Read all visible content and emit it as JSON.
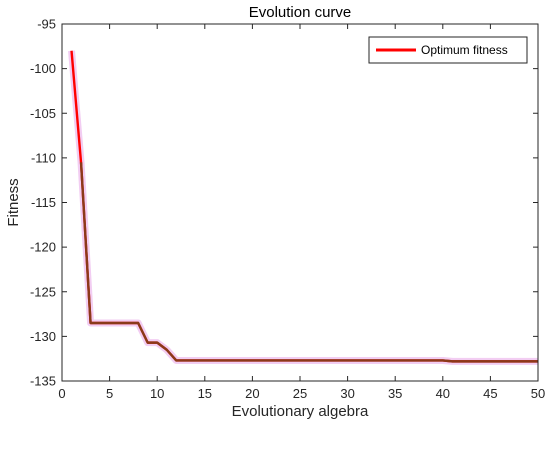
{
  "chart_data": {
    "type": "line",
    "title": "Evolution curve",
    "xlabel": "Evolutionary algebra",
    "ylabel": "Fitness",
    "xlim": [
      0,
      50
    ],
    "ylim": [
      -135,
      -95
    ],
    "xticks": [
      0,
      5,
      10,
      15,
      20,
      25,
      30,
      35,
      40,
      45,
      50
    ],
    "yticks": [
      -95,
      -100,
      -105,
      -110,
      -115,
      -120,
      -125,
      -130,
      -135
    ],
    "grid": false,
    "legend_position": "top-right",
    "series": [
      {
        "name": "Optimum fitness",
        "color": "#ff0000",
        "x": [
          1,
          2,
          3,
          4,
          5,
          6,
          7,
          8,
          9,
          10,
          11,
          12,
          13,
          14,
          15,
          16,
          17,
          18,
          19,
          20,
          21,
          22,
          23,
          24,
          25,
          26,
          27,
          28,
          29,
          30,
          31,
          32,
          33,
          34,
          35,
          36,
          37,
          38,
          39,
          40,
          41,
          42,
          43,
          44,
          45,
          46,
          47,
          48,
          49,
          50
        ],
        "y": [
          -98.0,
          -110.5,
          -128.5,
          -128.5,
          -128.5,
          -128.5,
          -128.5,
          -128.5,
          -130.7,
          -130.7,
          -131.5,
          -132.7,
          -132.7,
          -132.7,
          -132.7,
          -132.7,
          -132.7,
          -132.7,
          -132.7,
          -132.7,
          -132.7,
          -132.7,
          -132.7,
          -132.7,
          -132.7,
          -132.7,
          -132.7,
          -132.7,
          -132.7,
          -132.7,
          -132.7,
          -132.7,
          -132.7,
          -132.7,
          -132.7,
          -132.7,
          -132.7,
          -132.7,
          -132.7,
          -132.7,
          -132.8,
          -132.8,
          -132.8,
          -132.8,
          -132.8,
          -132.8,
          -132.8,
          -132.8,
          -132.8,
          -132.8
        ]
      }
    ]
  }
}
